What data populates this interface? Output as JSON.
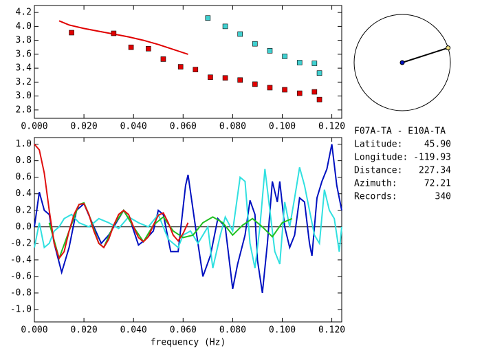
{
  "chart_data": [
    {
      "type": "scatter",
      "xlim": [
        0,
        0.124
      ],
      "ylim": [
        2.68,
        4.3
      ],
      "xticks": [
        {
          "value": 0,
          "label": "0.000"
        },
        {
          "value": 0.02,
          "label": "0.020"
        },
        {
          "value": 0.04,
          "label": "0.040"
        },
        {
          "value": 0.06,
          "label": "0.060"
        },
        {
          "value": 0.08,
          "label": "0.080"
        },
        {
          "value": 0.1,
          "label": "0.100"
        },
        {
          "value": 0.12,
          "label": "0.120"
        }
      ],
      "yticks": [
        2.8,
        {
          "value": 3,
          "label": "3.0"
        },
        3.2,
        3.4,
        3.6,
        3.8,
        {
          "value": 4,
          "label": "4.0"
        },
        4.2
      ],
      "series": [
        {
          "kind": "line",
          "color": "#e00000",
          "x": [
            0.01,
            0.014,
            0.02,
            0.026,
            0.032,
            0.038,
            0.044,
            0.05,
            0.056,
            0.062
          ],
          "values": [
            4.08,
            4.02,
            3.97,
            3.93,
            3.89,
            3.85,
            3.8,
            3.74,
            3.67,
            3.6
          ]
        },
        {
          "kind": "square",
          "color": "#e00000",
          "x": [
            0.015,
            0.032,
            0.039,
            0.046,
            0.052,
            0.059,
            0.065,
            0.071,
            0.077,
            0.083,
            0.089,
            0.095,
            0.101,
            0.107,
            0.113,
            0.115
          ],
          "values": [
            3.91,
            3.9,
            3.7,
            3.68,
            3.53,
            3.42,
            3.38,
            3.27,
            3.26,
            3.23,
            3.17,
            3.12,
            3.09,
            3.04,
            3.06,
            2.95
          ]
        },
        {
          "kind": "square",
          "color": "#40d0d0",
          "x": [
            0.07,
            0.077,
            0.083,
            0.089,
            0.095,
            0.101,
            0.107,
            0.113,
            0.115
          ],
          "values": [
            4.12,
            4.0,
            3.89,
            3.75,
            3.65,
            3.57,
            3.48,
            3.47,
            3.33
          ]
        }
      ]
    },
    {
      "type": "line",
      "xlabel": "frequency (Hz)",
      "xlim": [
        0,
        0.124
      ],
      "ylim": [
        -1.15,
        1.08
      ],
      "zero_line": true,
      "xticks": [
        {
          "value": 0,
          "label": "0.000"
        },
        {
          "value": 0.02,
          "label": "0.020"
        },
        {
          "value": 0.04,
          "label": "0.040"
        },
        {
          "value": 0.06,
          "label": "0.060"
        },
        {
          "value": 0.08,
          "label": "0.080"
        },
        {
          "value": 0.1,
          "label": "0.100"
        },
        {
          "value": 0.12,
          "label": "0.120"
        }
      ],
      "yticks": [
        {
          "value": -1,
          "label": "-1.0"
        },
        -0.8,
        -0.6,
        -0.4,
        -0.2,
        {
          "value": 0,
          "label": "0.0"
        },
        0.2,
        0.4,
        0.6,
        0.8,
        {
          "value": 1,
          "label": "1.0"
        }
      ],
      "series": [
        {
          "kind": "line",
          "color": "#0010c0",
          "x": [
            0,
            0.002,
            0.004,
            0.006,
            0.008,
            0.011,
            0.014,
            0.017,
            0.02,
            0.024,
            0.027,
            0.03,
            0.033,
            0.036,
            0.039,
            0.042,
            0.045,
            0.048,
            0.05,
            0.052,
            0.055,
            0.058,
            0.061,
            0.062,
            0.065,
            0.068,
            0.071,
            0.074,
            0.077,
            0.08,
            0.082,
            0.085,
            0.087,
            0.089,
            0.09,
            0.092,
            0.094,
            0.096,
            0.098,
            0.099,
            0.101,
            0.103,
            0.105,
            0.107,
            0.109,
            0.111,
            0.112,
            0.114,
            0.116,
            0.118,
            0.12,
            0.122,
            0.124
          ],
          "values": [
            0.0,
            0.42,
            0.2,
            0.15,
            -0.2,
            -0.55,
            -0.25,
            0.2,
            0.28,
            0.0,
            -0.2,
            -0.1,
            0.05,
            0.2,
            0.05,
            -0.22,
            -0.15,
            -0.05,
            0.2,
            0.15,
            -0.3,
            -0.3,
            0.5,
            0.63,
            0.0,
            -0.6,
            -0.35,
            0.1,
            0.0,
            -0.75,
            -0.45,
            -0.1,
            0.32,
            0.15,
            -0.4,
            -0.8,
            -0.2,
            0.55,
            0.3,
            0.55,
            0.0,
            -0.25,
            -0.1,
            0.35,
            0.3,
            -0.2,
            -0.35,
            0.35,
            0.55,
            0.7,
            1.0,
            0.5,
            0.2
          ]
        },
        {
          "kind": "line",
          "color": "#30e0e0",
          "x": [
            0,
            0.002,
            0.004,
            0.006,
            0.008,
            0.01,
            0.012,
            0.015,
            0.018,
            0.022,
            0.026,
            0.03,
            0.034,
            0.038,
            0.042,
            0.046,
            0.05,
            0.054,
            0.058,
            0.06,
            0.063,
            0.066,
            0.07,
            0.072,
            0.075,
            0.077,
            0.08,
            0.083,
            0.085,
            0.087,
            0.089,
            0.091,
            0.093,
            0.095,
            0.097,
            0.099,
            0.101,
            0.103,
            0.105,
            0.107,
            0.109,
            0.111,
            0.113,
            0.115,
            0.117,
            0.119,
            0.121,
            0.123,
            0.124
          ],
          "values": [
            -0.25,
            0.05,
            -0.25,
            -0.2,
            -0.05,
            0.0,
            0.1,
            0.15,
            0.05,
            0.0,
            0.1,
            0.05,
            -0.02,
            0.12,
            0.05,
            0.0,
            0.15,
            -0.15,
            -0.25,
            -0.1,
            -0.05,
            -0.2,
            0.0,
            -0.5,
            -0.1,
            0.12,
            -0.05,
            0.6,
            0.55,
            -0.2,
            -0.5,
            0.0,
            0.7,
            0.2,
            -0.3,
            -0.45,
            0.3,
            0.0,
            0.35,
            0.72,
            0.5,
            0.2,
            -0.1,
            -0.2,
            0.45,
            0.2,
            0.1,
            -0.3,
            0.0
          ]
        },
        {
          "kind": "line",
          "color": "#20c020",
          "x": [
            0.006,
            0.01,
            0.014,
            0.018,
            0.02,
            0.022,
            0.026,
            0.028,
            0.032,
            0.036,
            0.04,
            0.044,
            0.048,
            0.052,
            0.056,
            0.06,
            0.064,
            0.068,
            0.072,
            0.076,
            0.08,
            0.084,
            0.088,
            0.092,
            0.096,
            0.1,
            0.104
          ],
          "values": [
            0.05,
            -0.38,
            -0.05,
            0.27,
            0.29,
            0.15,
            -0.2,
            -0.25,
            0.02,
            0.2,
            0.0,
            -0.18,
            0.02,
            0.12,
            -0.05,
            -0.13,
            -0.1,
            0.05,
            0.12,
            0.05,
            -0.1,
            0.02,
            0.1,
            0.0,
            -0.12,
            0.05,
            0.1
          ]
        },
        {
          "kind": "line",
          "color": "#e01010",
          "x": [
            0,
            0.002,
            0.004,
            0.006,
            0.008,
            0.01,
            0.012,
            0.014,
            0.016,
            0.018,
            0.02,
            0.022,
            0.024,
            0.026,
            0.028,
            0.03,
            0.032,
            0.034,
            0.036,
            0.038,
            0.04,
            0.042,
            0.044,
            0.046,
            0.048,
            0.05,
            0.052,
            0.054,
            0.056,
            0.058,
            0.06,
            0.062
          ],
          "values": [
            1.0,
            0.93,
            0.65,
            0.2,
            -0.2,
            -0.38,
            -0.3,
            -0.05,
            0.15,
            0.27,
            0.28,
            0.15,
            -0.05,
            -0.2,
            -0.25,
            -0.15,
            0.02,
            0.15,
            0.2,
            0.15,
            0.0,
            -0.13,
            -0.18,
            -0.12,
            0.02,
            0.14,
            0.17,
            0.05,
            -0.1,
            -0.17,
            -0.08,
            0.05
          ]
        }
      ]
    }
  ],
  "station": {
    "title": "F07A-TA  -  E10A-TA",
    "rows": [
      {
        "label": "Latitude:",
        "value": "45.90"
      },
      {
        "label": "Longitude:",
        "value": "-119.93"
      },
      {
        "label": "Distance:",
        "value": "227.34"
      },
      {
        "label": "Azimuth:",
        "value": "72.21"
      },
      {
        "label": "Records:",
        "value": "340"
      }
    ]
  }
}
